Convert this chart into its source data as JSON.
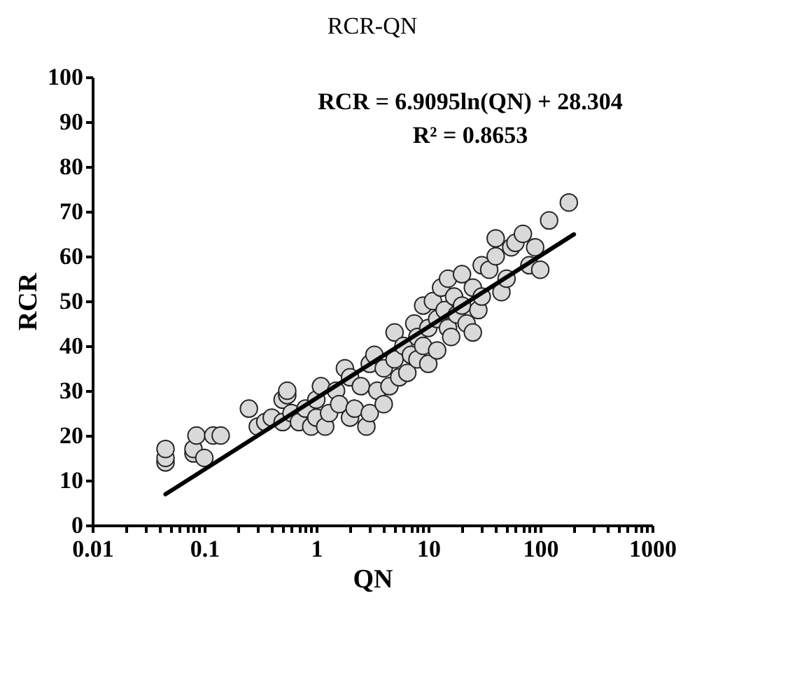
{
  "chart_data": {
    "type": "scatter",
    "title": "RCR-QN",
    "xlabel": "QN",
    "ylabel": "RCR",
    "log": "x",
    "xlim": [
      0.01,
      1000
    ],
    "ylim": [
      0,
      100
    ],
    "xticks": [
      {
        "value": 0.01,
        "label": "0.01"
      },
      {
        "value": 0.02,
        "label": null
      },
      {
        "value": 0.03,
        "label": null
      },
      {
        "value": 0.04,
        "label": null
      },
      {
        "value": 0.05,
        "label": null
      },
      {
        "value": 0.06,
        "label": null
      },
      {
        "value": 0.07,
        "label": null
      },
      {
        "value": 0.08,
        "label": null
      },
      {
        "value": 0.09,
        "label": null
      },
      {
        "value": 0.1,
        "label": "0.1"
      },
      {
        "value": 0.2,
        "label": null
      },
      {
        "value": 0.3,
        "label": null
      },
      {
        "value": 0.4,
        "label": null
      },
      {
        "value": 0.5,
        "label": null
      },
      {
        "value": 0.6,
        "label": null
      },
      {
        "value": 0.7,
        "label": null
      },
      {
        "value": 0.8,
        "label": null
      },
      {
        "value": 0.9,
        "label": null
      },
      1,
      {
        "value": 2,
        "label": null
      },
      {
        "value": 3,
        "label": null
      },
      {
        "value": 4,
        "label": null
      },
      {
        "value": 5,
        "label": null
      },
      {
        "value": 6,
        "label": null
      },
      {
        "value": 7,
        "label": null
      },
      {
        "value": 8,
        "label": null
      },
      {
        "value": 9,
        "label": null
      },
      10,
      {
        "value": 20,
        "label": null
      },
      {
        "value": 30,
        "label": null
      },
      {
        "value": 40,
        "label": null
      },
      {
        "value": 50,
        "label": null
      },
      {
        "value": 60,
        "label": null
      },
      {
        "value": 70,
        "label": null
      },
      {
        "value": 80,
        "label": null
      },
      {
        "value": 90,
        "label": null
      },
      100,
      {
        "value": 200,
        "label": null
      },
      {
        "value": 300,
        "label": null
      },
      {
        "value": 400,
        "label": null
      },
      {
        "value": 500,
        "label": null
      },
      {
        "value": 600,
        "label": null
      },
      {
        "value": 700,
        "label": null
      },
      {
        "value": 800,
        "label": null
      },
      {
        "value": 900,
        "label": null
      },
      1000
    ],
    "yticks": [
      0,
      10,
      20,
      30,
      40,
      50,
      60,
      70,
      80,
      90,
      100
    ],
    "grid": false,
    "annotations": [
      "RCR = 6.9095ln(QN) + 28.304",
      "R² = 0.8653"
    ],
    "series": [
      {
        "color": "#d9d9d9",
        "marker": "circle",
        "x": [
          0.045,
          0.045,
          0.045,
          0.08,
          0.08,
          0.085,
          0.1,
          0.12,
          0.14,
          0.25,
          0.3,
          0.35,
          0.4,
          0.5,
          0.5,
          0.55,
          0.55,
          0.6,
          0.7,
          0.8,
          0.9,
          1,
          1,
          1.1,
          1.2,
          1.3,
          1.5,
          1.6,
          1.8,
          2,
          2,
          2.2,
          2.5,
          2.8,
          3,
          3,
          3.3,
          3.5,
          4,
          4,
          4.5,
          5,
          5,
          5.5,
          6,
          6.5,
          7,
          7.5,
          8,
          8,
          9,
          9,
          10,
          10,
          11,
          12,
          12,
          13,
          14,
          15,
          15,
          16,
          17,
          18,
          20,
          20,
          22,
          25,
          25,
          28,
          30,
          30,
          35,
          40,
          40,
          45,
          50,
          55,
          60,
          70,
          80,
          90,
          100,
          120,
          180
        ],
        "values": [
          14,
          15,
          17,
          16,
          17,
          20,
          15,
          20,
          20,
          26,
          22,
          23,
          24,
          23,
          28,
          29,
          30,
          25,
          23,
          26,
          22,
          24,
          28,
          31,
          22,
          25,
          30,
          27,
          35,
          24,
          33,
          26,
          31,
          22,
          36,
          25,
          38,
          30,
          27,
          35,
          31,
          43,
          37,
          33,
          40,
          34,
          38,
          45,
          42,
          37,
          49,
          40,
          44,
          36,
          50,
          46,
          39,
          53,
          48,
          55,
          44,
          42,
          51,
          47,
          56,
          49,
          45,
          53,
          43,
          48,
          51,
          58,
          57,
          60,
          64,
          52,
          55,
          62,
          63,
          65,
          58,
          62,
          57,
          68,
          72
        ]
      },
      {
        "type": "line",
        "color": "#000000",
        "marker": "none",
        "line_style": "solid",
        "x": [
          0.045,
          200
        ],
        "values": [
          6.9,
          64.9
        ]
      }
    ]
  }
}
